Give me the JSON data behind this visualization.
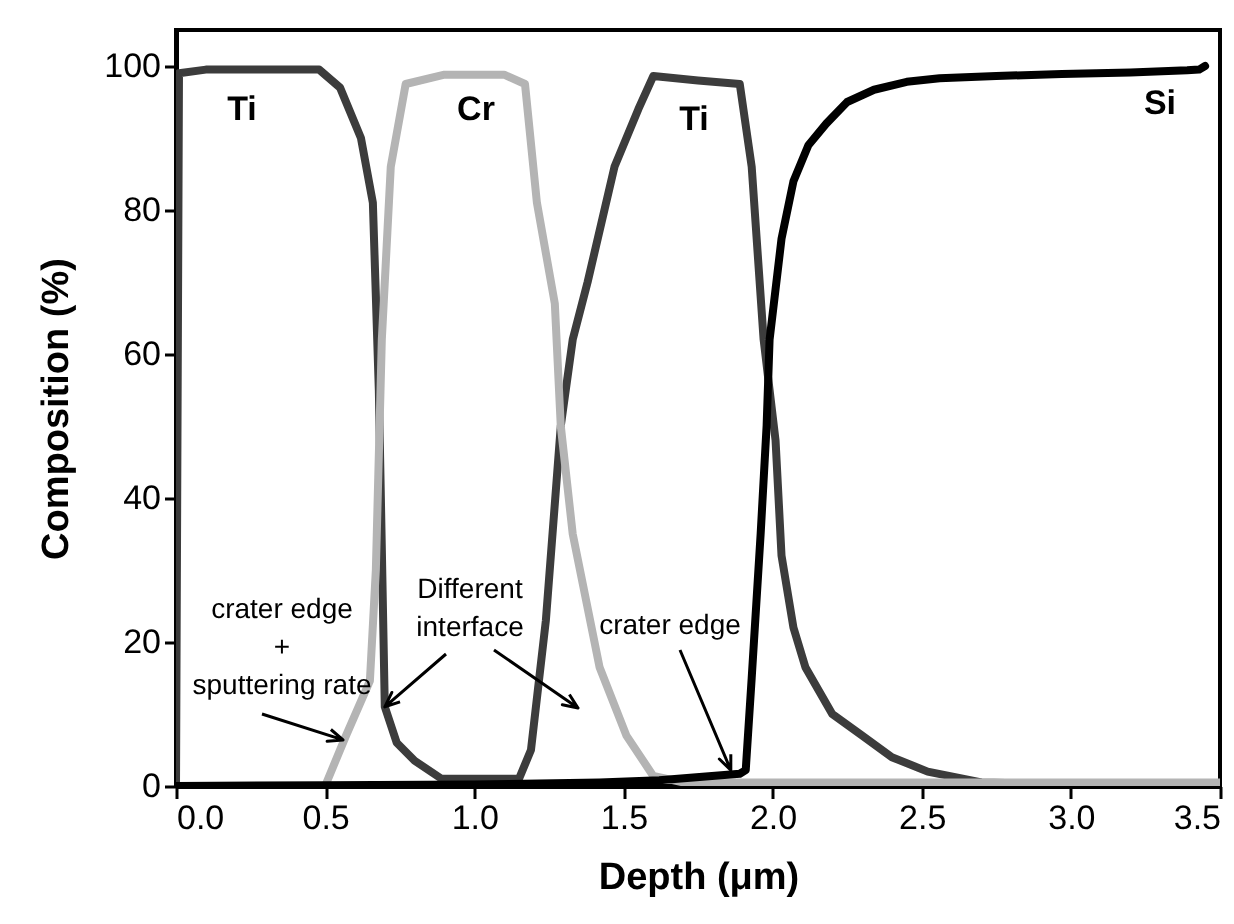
{
  "chart_data": {
    "type": "line",
    "xlabel": "Depth (μm)",
    "ylabel": "Composition (%)",
    "xlim": [
      0,
      3.5
    ],
    "ylim": [
      0,
      105
    ],
    "xticks": [
      {
        "value": 0,
        "label": "0.0"
      },
      {
        "value": 0.5,
        "label": "0.5"
      },
      {
        "value": 1,
        "label": "1.0"
      },
      {
        "value": 1.5,
        "label": "1.5"
      },
      {
        "value": 2,
        "label": "2.0"
      },
      {
        "value": 2.5,
        "label": "2.5"
      },
      {
        "value": 3,
        "label": "3.0"
      },
      {
        "value": 3.5,
        "label": "3.5"
      }
    ],
    "yticks": [
      0,
      20,
      40,
      60,
      80,
      100
    ],
    "grid": false,
    "series": [
      {
        "color": "#3c3c3c",
        "x": [
          0,
          0.01,
          0.1,
          0.3,
          0.48,
          0.55,
          0.62,
          0.66,
          0.68,
          0.7,
          0.74,
          0.8,
          0.89,
          1.0,
          1.15,
          1.19,
          1.24,
          1.29,
          1.33,
          1.38,
          1.47,
          1.55,
          1.6,
          1.75,
          1.89,
          1.93,
          1.97,
          2.01,
          2.03,
          2.07,
          2.11,
          2.2,
          2.3,
          2.4,
          2.52,
          2.7,
          3.0,
          3.5
        ],
        "values": [
          0,
          99,
          99.5,
          99.5,
          99.5,
          97,
          90,
          81,
          55,
          11,
          6,
          3.5,
          1,
          1,
          1,
          5,
          23,
          50,
          62,
          70,
          86,
          94,
          98.6,
          98,
          97.5,
          86,
          62,
          48,
          32,
          22,
          16.5,
          10,
          7,
          4,
          2,
          0.5,
          0.2,
          0.2
        ]
      },
      {
        "color": "#b4b4b4",
        "x": [
          0,
          0.4,
          0.5,
          0.57,
          0.65,
          0.67,
          0.69,
          0.72,
          0.77,
          0.9,
          1.1,
          1.17,
          1.21,
          1.27,
          1.29,
          1.33,
          1.42,
          1.51,
          1.6,
          1.7,
          2.5,
          3.5
        ],
        "values": [
          0,
          0,
          0,
          7,
          14.6,
          30,
          62,
          86,
          97.5,
          98.8,
          98.8,
          97.5,
          81,
          67,
          50,
          35,
          16.5,
          7,
          1.4,
          0.5,
          0.5,
          0.5
        ]
      },
      {
        "color": "#000000",
        "x": [
          0,
          0.5,
          1.0,
          1.42,
          1.62,
          1.89,
          1.91,
          1.93,
          1.96,
          1.98,
          1.99,
          2.03,
          2.07,
          2.12,
          2.18,
          2.25,
          2.34,
          2.45,
          2.56,
          2.75,
          2.97,
          3.2,
          3.39,
          3.43,
          3.45
        ],
        "values": [
          0,
          0.1,
          0.2,
          0.5,
          0.8,
          1.7,
          2.2,
          15,
          35,
          50,
          62,
          76,
          84,
          89,
          92,
          95,
          96.7,
          97.8,
          98.3,
          98.6,
          98.9,
          99.1,
          99.4,
          99.5,
          100
        ]
      }
    ],
    "annotations": [
      "Ti",
      "Cr",
      "Ti",
      "Si",
      {
        "text": "crater edge\n+\nsputtering rate",
        "x": 0.56,
        "y": 6.4
      },
      {
        "text": "Different\ninterface",
        "x": 0.7,
        "y": 11
      },
      {
        "text": "crater edge",
        "x": 1.86,
        "y": 2.2
      }
    ]
  }
}
